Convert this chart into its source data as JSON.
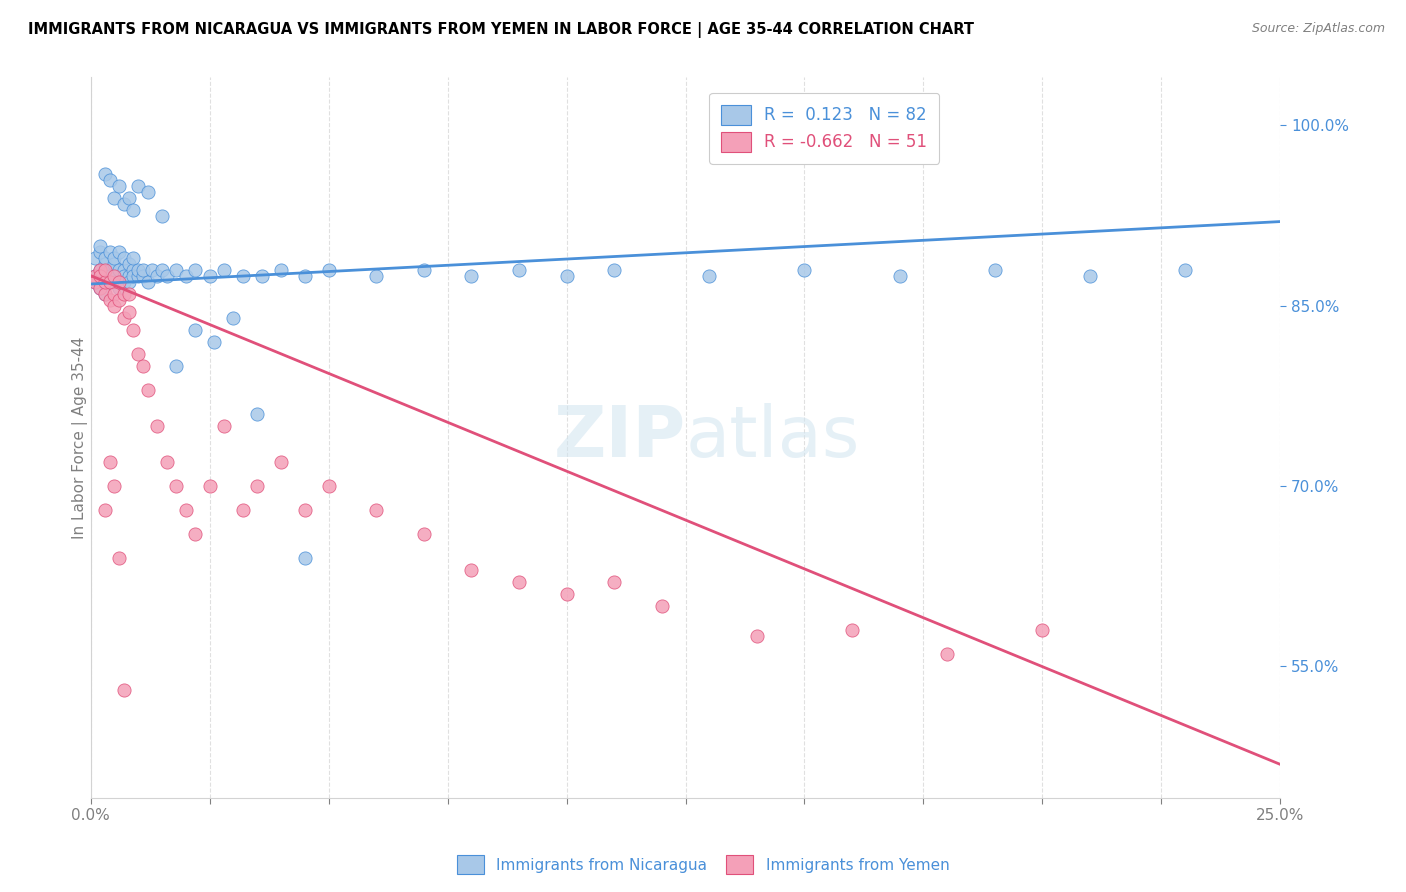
{
  "title": "IMMIGRANTS FROM NICARAGUA VS IMMIGRANTS FROM YEMEN IN LABOR FORCE | AGE 35-44 CORRELATION CHART",
  "source": "Source: ZipAtlas.com",
  "ylabel": "In Labor Force | Age 35-44",
  "series1_color": "#a8c8e8",
  "series2_color": "#f4a0b8",
  "trendline1_color": "#4a90d9",
  "trendline2_color": "#e0507a",
  "series1_label": "Immigrants from Nicaragua",
  "series2_label": "Immigrants from Yemen",
  "xlim": [
    0.0,
    0.25
  ],
  "ylim": [
    0.44,
    1.04
  ],
  "ytick_vals": [
    0.55,
    0.7,
    0.85,
    1.0
  ],
  "trendline1_x0": 0.0,
  "trendline1_y0": 0.868,
  "trendline1_x1": 0.25,
  "trendline1_y1": 0.92,
  "trendline2_x0": 0.0,
  "trendline2_y0": 0.875,
  "trendline2_x1": 0.25,
  "trendline2_y1": 0.468,
  "nic_x": [
    0.001,
    0.001,
    0.001,
    0.002,
    0.002,
    0.002,
    0.002,
    0.002,
    0.003,
    0.003,
    0.003,
    0.003,
    0.003,
    0.004,
    0.004,
    0.004,
    0.004,
    0.005,
    0.005,
    0.005,
    0.005,
    0.006,
    0.006,
    0.006,
    0.006,
    0.007,
    0.007,
    0.007,
    0.007,
    0.008,
    0.008,
    0.008,
    0.009,
    0.009,
    0.009,
    0.01,
    0.01,
    0.011,
    0.011,
    0.012,
    0.013,
    0.014,
    0.015,
    0.016,
    0.018,
    0.02,
    0.022,
    0.025,
    0.028,
    0.032,
    0.036,
    0.04,
    0.045,
    0.05,
    0.06,
    0.07,
    0.08,
    0.09,
    0.1,
    0.11,
    0.13,
    0.15,
    0.17,
    0.19,
    0.21,
    0.23,
    0.003,
    0.004,
    0.005,
    0.006,
    0.007,
    0.008,
    0.009,
    0.01,
    0.012,
    0.015,
    0.018,
    0.022,
    0.026,
    0.03,
    0.035,
    0.045
  ],
  "nic_y": [
    0.87,
    0.89,
    0.875,
    0.88,
    0.895,
    0.865,
    0.9,
    0.875,
    0.87,
    0.885,
    0.89,
    0.875,
    0.86,
    0.88,
    0.87,
    0.895,
    0.875,
    0.885,
    0.87,
    0.89,
    0.875,
    0.87,
    0.88,
    0.895,
    0.865,
    0.88,
    0.87,
    0.89,
    0.875,
    0.875,
    0.885,
    0.87,
    0.88,
    0.875,
    0.89,
    0.875,
    0.88,
    0.875,
    0.88,
    0.87,
    0.88,
    0.875,
    0.88,
    0.875,
    0.88,
    0.875,
    0.88,
    0.875,
    0.88,
    0.875,
    0.875,
    0.88,
    0.875,
    0.88,
    0.875,
    0.88,
    0.875,
    0.88,
    0.875,
    0.88,
    0.875,
    0.88,
    0.875,
    0.88,
    0.875,
    0.88,
    0.96,
    0.955,
    0.94,
    0.95,
    0.935,
    0.94,
    0.93,
    0.95,
    0.945,
    0.925,
    0.8,
    0.83,
    0.82,
    0.84,
    0.76,
    0.64
  ],
  "yem_x": [
    0.001,
    0.001,
    0.002,
    0.002,
    0.002,
    0.003,
    0.003,
    0.003,
    0.004,
    0.004,
    0.005,
    0.005,
    0.005,
    0.006,
    0.006,
    0.007,
    0.007,
    0.008,
    0.008,
    0.009,
    0.01,
    0.011,
    0.012,
    0.014,
    0.016,
    0.018,
    0.02,
    0.022,
    0.025,
    0.028,
    0.032,
    0.035,
    0.04,
    0.045,
    0.05,
    0.06,
    0.07,
    0.08,
    0.09,
    0.1,
    0.11,
    0.12,
    0.14,
    0.16,
    0.18,
    0.2,
    0.003,
    0.004,
    0.005,
    0.006,
    0.007
  ],
  "yem_y": [
    0.875,
    0.87,
    0.865,
    0.88,
    0.875,
    0.86,
    0.87,
    0.88,
    0.855,
    0.87,
    0.86,
    0.875,
    0.85,
    0.855,
    0.87,
    0.84,
    0.86,
    0.845,
    0.86,
    0.83,
    0.81,
    0.8,
    0.78,
    0.75,
    0.72,
    0.7,
    0.68,
    0.66,
    0.7,
    0.75,
    0.68,
    0.7,
    0.72,
    0.68,
    0.7,
    0.68,
    0.66,
    0.63,
    0.62,
    0.61,
    0.62,
    0.6,
    0.575,
    0.58,
    0.56,
    0.58,
    0.68,
    0.72,
    0.7,
    0.64,
    0.53
  ]
}
